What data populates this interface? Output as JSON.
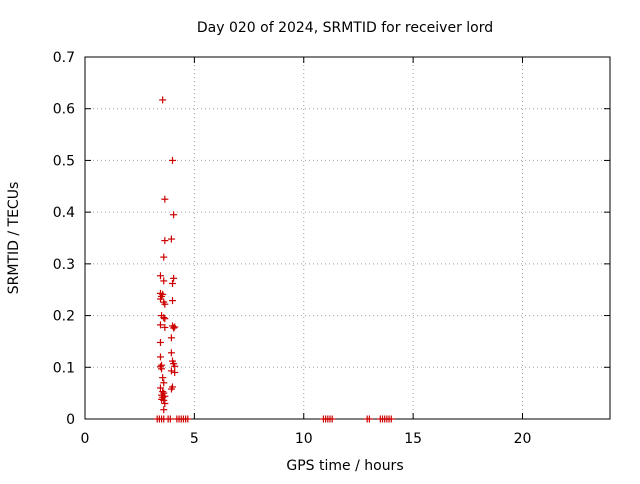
{
  "chart_data": {
    "type": "scatter",
    "title": "Day 020 of 2024, SRMTID for receiver lord",
    "xlabel": "GPS time / hours",
    "ylabel": "SRMTID / TECUs",
    "xlim": [
      0,
      24
    ],
    "ylim": [
      0,
      0.7
    ],
    "xticks": [
      0,
      5,
      10,
      15,
      20
    ],
    "yticks": [
      0,
      0.1,
      0.2,
      0.3,
      0.4,
      0.5,
      0.6,
      0.7
    ],
    "xtick_labels": [
      "0",
      "5",
      "10",
      "15",
      "20"
    ],
    "ytick_labels": [
      "0",
      "0.1",
      "0.2",
      "0.3",
      "0.4",
      "0.5",
      "0.6",
      "0.7"
    ],
    "grid": true,
    "marker": "+",
    "color": "#cc0000",
    "series": [
      {
        "name": "SRMTID",
        "points": [
          [
            3.55,
            0.617
          ],
          [
            4.0,
            0.5
          ],
          [
            3.65,
            0.425
          ],
          [
            4.05,
            0.395
          ],
          [
            3.65,
            0.345
          ],
          [
            3.95,
            0.348
          ],
          [
            3.6,
            0.313
          ],
          [
            3.45,
            0.277
          ],
          [
            3.6,
            0.267
          ],
          [
            4.05,
            0.272
          ],
          [
            4.0,
            0.262
          ],
          [
            3.45,
            0.243
          ],
          [
            3.5,
            0.237
          ],
          [
            3.55,
            0.241
          ],
          [
            3.45,
            0.232
          ],
          [
            3.6,
            0.226
          ],
          [
            3.65,
            0.222
          ],
          [
            4.0,
            0.229
          ],
          [
            3.5,
            0.2
          ],
          [
            3.6,
            0.196
          ],
          [
            3.65,
            0.194
          ],
          [
            3.45,
            0.182
          ],
          [
            3.65,
            0.177
          ],
          [
            4.0,
            0.18
          ],
          [
            4.05,
            0.176
          ],
          [
            4.1,
            0.178
          ],
          [
            3.95,
            0.157
          ],
          [
            3.45,
            0.148
          ],
          [
            3.95,
            0.128
          ],
          [
            3.45,
            0.12
          ],
          [
            4.0,
            0.112
          ],
          [
            4.05,
            0.107
          ],
          [
            4.1,
            0.102
          ],
          [
            3.45,
            0.101
          ],
          [
            3.5,
            0.104
          ],
          [
            3.5,
            0.097
          ],
          [
            3.95,
            0.093
          ],
          [
            4.1,
            0.09
          ],
          [
            3.55,
            0.08
          ],
          [
            3.6,
            0.07
          ],
          [
            4.0,
            0.062
          ],
          [
            3.95,
            0.058
          ],
          [
            3.45,
            0.06
          ],
          [
            3.55,
            0.053
          ],
          [
            3.6,
            0.05
          ],
          [
            3.5,
            0.046
          ],
          [
            3.55,
            0.042
          ],
          [
            3.65,
            0.044
          ],
          [
            3.5,
            0.038
          ],
          [
            3.6,
            0.036
          ],
          [
            3.65,
            0.03
          ],
          [
            3.6,
            0.018
          ],
          [
            3.3,
            0.0
          ],
          [
            3.4,
            0.0
          ],
          [
            3.5,
            0.0
          ],
          [
            3.6,
            0.0
          ],
          [
            3.8,
            0.0
          ],
          [
            3.9,
            0.0
          ],
          [
            4.2,
            0.0
          ],
          [
            4.3,
            0.0
          ],
          [
            4.4,
            0.0
          ],
          [
            4.5,
            0.0
          ],
          [
            4.6,
            0.0
          ],
          [
            4.7,
            0.0
          ],
          [
            10.9,
            0.0
          ],
          [
            11.0,
            0.0
          ],
          [
            11.1,
            0.0
          ],
          [
            11.2,
            0.0
          ],
          [
            11.3,
            0.0
          ],
          [
            12.9,
            0.0
          ],
          [
            13.0,
            0.0
          ],
          [
            13.5,
            0.0
          ],
          [
            13.6,
            0.0
          ],
          [
            13.7,
            0.0
          ],
          [
            13.8,
            0.0
          ],
          [
            13.9,
            0.0
          ],
          [
            14.0,
            0.0
          ]
        ]
      }
    ]
  }
}
